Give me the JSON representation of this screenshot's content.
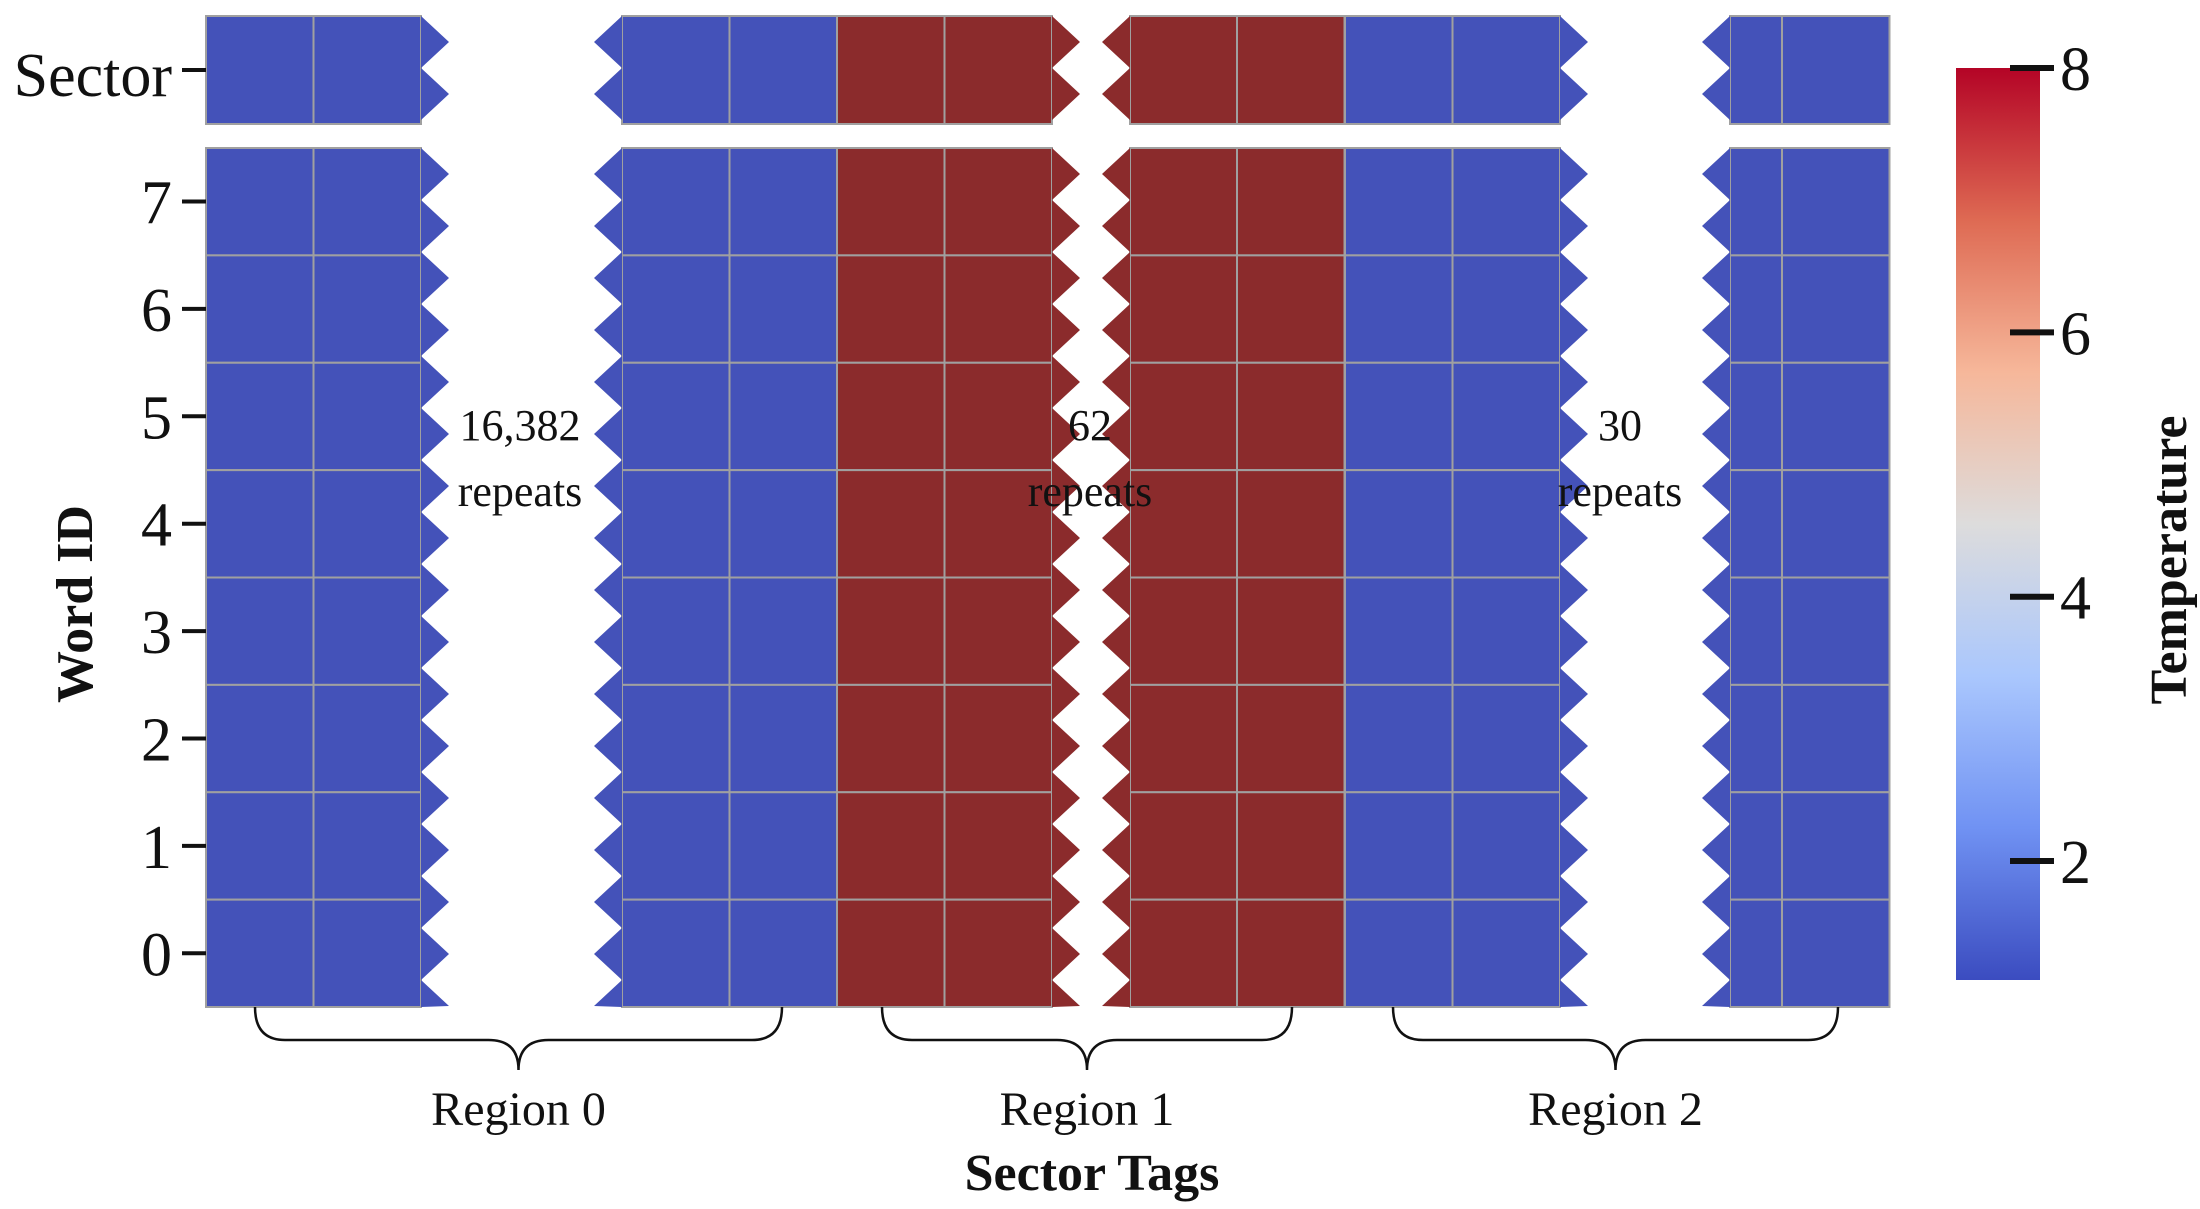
{
  "chart_data": {
    "type": "heatmap",
    "xlabel": "Sector Tags",
    "ylabel": "Word ID",
    "sector_row_label": "Sector",
    "y_ticks": [
      "0",
      "1",
      "2",
      "3",
      "4",
      "5",
      "6",
      "7"
    ],
    "colorbar": {
      "label": "Temperature",
      "range": [
        1.1,
        8.0
      ],
      "ticks": [
        "2",
        "4",
        "6",
        "8"
      ],
      "colormap": "coolwarm",
      "colors": [
        "#3b4cc0",
        "#7092f3",
        "#aac7fd",
        "#dddcdc",
        "#f6b79a",
        "#de6a53",
        "#b40426"
      ]
    },
    "segments": [
      {
        "columns": 2,
        "temps": [
          1.3,
          1.3
        ]
      },
      {
        "columns": 2,
        "temps": [
          1.3,
          1.3
        ]
      },
      {
        "columns": 2,
        "temps": [
          8.0,
          8.0
        ]
      },
      {
        "columns": 1,
        "temps": [
          8.0
        ]
      },
      {
        "columns": 1,
        "temps": [
          8.0
        ]
      },
      {
        "columns": 2,
        "temps": [
          1.3,
          1.3
        ]
      },
      {
        "columns": 1,
        "temps": [
          1.3
        ]
      },
      {
        "columns": 1,
        "temps": [
          1.3
        ]
      }
    ],
    "sector_values_note": "Sector row uses the same temperature as each column",
    "gaps": [
      {
        "repeats_label": "16,382\nrepeats"
      },
      {
        "repeats_label": "62\nrepeats"
      },
      {
        "repeats_label": "30\nrepeats"
      }
    ],
    "regions": [
      "Region 0",
      "Region 1",
      "Region 2"
    ]
  }
}
